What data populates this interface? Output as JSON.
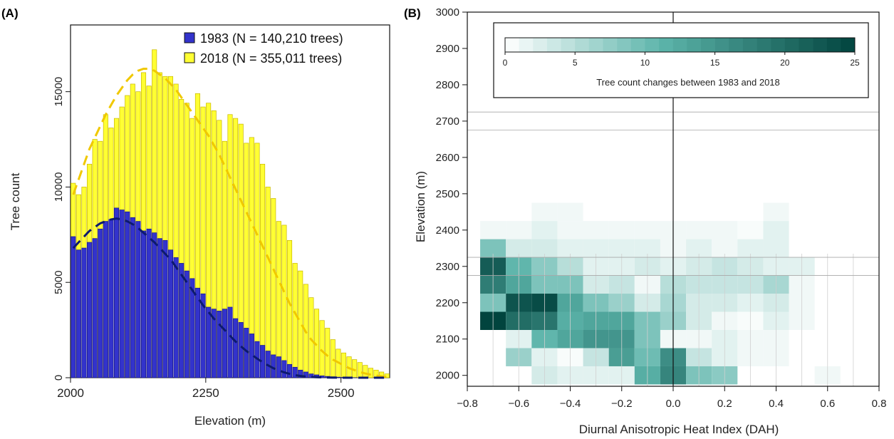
{
  "chart_data": [
    {
      "panel_label": "(A)",
      "type": "bar",
      "xlabel": "Elevation (m)",
      "ylabel": "Tree count",
      "xlim": [
        2000,
        2590
      ],
      "ylim": [
        0,
        18500
      ],
      "xticks": [
        2000,
        2250,
        2500
      ],
      "yticks": [
        0,
        5000,
        10000,
        15000
      ],
      "bin_width": 10,
      "bins_start": [
        2000,
        2010,
        2020,
        2030,
        2040,
        2050,
        2060,
        2070,
        2080,
        2090,
        2100,
        2110,
        2120,
        2130,
        2140,
        2150,
        2160,
        2170,
        2180,
        2190,
        2200,
        2210,
        2220,
        2230,
        2240,
        2250,
        2260,
        2270,
        2280,
        2290,
        2300,
        2310,
        2320,
        2330,
        2340,
        2350,
        2360,
        2370,
        2380,
        2390,
        2400,
        2410,
        2420,
        2430,
        2440,
        2450,
        2460,
        2470,
        2480,
        2490,
        2500,
        2510,
        2520,
        2530,
        2540,
        2550,
        2560,
        2570,
        2580
      ],
      "series": [
        {
          "name": "2018 (N = 355,011 trees)",
          "color": "#ffff33",
          "values": [
            10200,
            9600,
            10000,
            11200,
            12500,
            12400,
            13800,
            13100,
            13600,
            14200,
            14800,
            15400,
            15000,
            16000,
            15300,
            17200,
            16000,
            15800,
            15800,
            15400,
            14600,
            14400,
            13600,
            14900,
            14200,
            14400,
            14000,
            13500,
            12400,
            13800,
            13600,
            13300,
            12300,
            12600,
            12300,
            11200,
            10000,
            9400,
            8200,
            8000,
            7200,
            6000,
            5600,
            4900,
            4200,
            3600,
            3000,
            2600,
            2000,
            1500,
            1300,
            1100,
            950,
            800,
            650,
            500,
            400,
            300,
            200
          ],
          "fit": [
            9600,
            10400,
            11200,
            12000,
            12600,
            13200,
            13800,
            14300,
            14800,
            15200,
            15600,
            15900,
            16100,
            16200,
            16200,
            16100,
            15900,
            15700,
            15400,
            15100,
            14700,
            14300,
            13900,
            13500,
            13100,
            12700,
            12200,
            11700,
            11100,
            10500,
            9900,
            9300,
            8700,
            8100,
            7500,
            6900,
            6300,
            5700,
            5100,
            4500,
            3900,
            3400,
            2900,
            2400,
            2000,
            1700,
            1400,
            1150,
            950,
            800,
            650,
            500,
            400,
            300,
            220,
            160,
            110,
            70,
            40
          ]
        },
        {
          "name": "1983 (N = 140,210 trees)",
          "color": "#3333cc",
          "values": [
            7400,
            6700,
            6800,
            7100,
            7300,
            7800,
            8200,
            8300,
            8900,
            8800,
            8700,
            8400,
            8200,
            7700,
            7800,
            7600,
            7300,
            7200,
            6700,
            6300,
            6000,
            5600,
            5200,
            4700,
            4400,
            3700,
            3600,
            3500,
            3600,
            3700,
            3100,
            2900,
            2600,
            2300,
            1900,
            1700,
            1400,
            1200,
            1100,
            900,
            700,
            550,
            400,
            300,
            200,
            150,
            100,
            70,
            50,
            30,
            20,
            10,
            5,
            0,
            0,
            0,
            0,
            0,
            0
          ],
          "fit": [
            6800,
            7100,
            7400,
            7700,
            7900,
            8100,
            8200,
            8300,
            8350,
            8300,
            8200,
            8050,
            7850,
            7600,
            7350,
            7100,
            6800,
            6500,
            6200,
            5800,
            5400,
            5000,
            4600,
            4200,
            3800,
            3450,
            3100,
            2800,
            2500,
            2200,
            1900,
            1650,
            1400,
            1200,
            1000,
            820,
            650,
            500,
            380,
            280,
            200,
            140,
            95,
            60,
            40,
            25,
            15,
            8,
            4,
            2,
            1,
            0,
            0,
            0,
            0,
            0,
            0,
            0,
            0
          ]
        }
      ],
      "legend": [
        "1983 (N = 140,210 trees)",
        "2018 (N = 355,011 trees)"
      ],
      "legend_position": "top-right"
    },
    {
      "panel_label": "(B)",
      "type": "heatmap",
      "xlabel": "Diurnal Anisotropic Heat Index (DAH)",
      "ylabel": "Elevation (m)",
      "xlim": [
        -0.8,
        0.8
      ],
      "ylim": [
        1970,
        3000
      ],
      "xticks": [
        "−0.8",
        "−0.6",
        "−0.4",
        "−0.2",
        "0.0",
        "0.2",
        "0.4",
        "0.6",
        "0.8"
      ],
      "xtick_values": [
        -0.8,
        -0.6,
        -0.4,
        -0.2,
        0.0,
        0.2,
        0.4,
        0.6,
        0.8
      ],
      "yticks": [
        2000,
        2100,
        2200,
        2300,
        2400,
        2500,
        2600,
        2700,
        2800,
        2900,
        3000
      ],
      "x_bin_start": -0.75,
      "x_bin_width": 0.1,
      "y_bin_start": 1975,
      "y_bin_height": 50,
      "row_elevation_centers": [
        2000,
        2050,
        2100,
        2150,
        2200,
        2250,
        2300,
        2350,
        2400,
        2450
      ],
      "col_dah_centers": [
        -0.7,
        -0.6,
        -0.5,
        -0.4,
        -0.3,
        -0.2,
        -0.1,
        0.0,
        0.1,
        0.2,
        0.3,
        0.4,
        0.5,
        0.6
      ],
      "grid_counts": [
        [
          0,
          0,
          3,
          2,
          2,
          2,
          12,
          17,
          9,
          8,
          0,
          0,
          0,
          1
        ],
        [
          0,
          7,
          2,
          0.5,
          4,
          14,
          10,
          16,
          4,
          2,
          1,
          1,
          0,
          0
        ],
        [
          0,
          2,
          11,
          13,
          15,
          15,
          9,
          1,
          1,
          2,
          1,
          1,
          0,
          0
        ],
        [
          25,
          20,
          19,
          12,
          13,
          13,
          9,
          7,
          3,
          1,
          0.5,
          2,
          1,
          0
        ],
        [
          9,
          23,
          24,
          13,
          9,
          7,
          3,
          6,
          3,
          3,
          2,
          3,
          1,
          0
        ],
        [
          18,
          13,
          9,
          9,
          3,
          4,
          1,
          5,
          4,
          4,
          4,
          6,
          1,
          0
        ],
        [
          22,
          11,
          8,
          5,
          2,
          2,
          3,
          2,
          3,
          4,
          3,
          2,
          2,
          0
        ],
        [
          9,
          3,
          3,
          2,
          2,
          2,
          2,
          1,
          2,
          1,
          2,
          2,
          0,
          0
        ],
        [
          1,
          1,
          2,
          1,
          1,
          1,
          1,
          1,
          1,
          1,
          0.5,
          2,
          0,
          0
        ],
        [
          0,
          0,
          1,
          1,
          0,
          0,
          0,
          0,
          0,
          0,
          0,
          1,
          0,
          0
        ]
      ],
      "colorbar": {
        "title": "Tree count changes between 1983 and 2018",
        "min": 0,
        "max": 25,
        "ticks": [
          0,
          5,
          10,
          15,
          20,
          25
        ],
        "low_color": "#ffffff",
        "high_color": "#01443e"
      },
      "colorbar_position": "top"
    }
  ]
}
